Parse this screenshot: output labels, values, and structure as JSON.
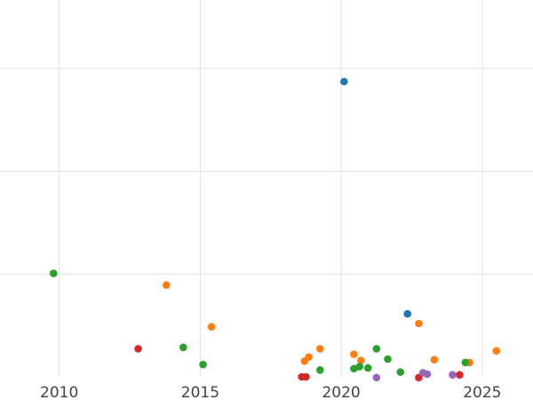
{
  "chart_data": {
    "type": "scatter",
    "title": "",
    "xlabel": "",
    "ylabel": "",
    "xlim": [
      2007.9,
      2026.8
    ],
    "ylim": [
      0,
      55
    ],
    "x_ticks": [
      2010,
      2015,
      2020,
      2025
    ],
    "x_tick_labels": [
      "2010",
      "2015",
      "2020",
      "2025"
    ],
    "y_grid_values": [
      15,
      30,
      45
    ],
    "grid": true,
    "legend": "none",
    "colors": {
      "blue": "#1f77b4",
      "orange": "#ff7f0e",
      "green": "#2ca02c",
      "red": "#d62728",
      "purple": "#9467bd"
    },
    "series": [
      {
        "color": "#1f77b4",
        "points": [
          {
            "x": 2020.1,
            "y": 43.1
          },
          {
            "x": 2022.35,
            "y": 9.2
          }
        ]
      },
      {
        "color": "#ff7f0e",
        "points": [
          {
            "x": 2013.8,
            "y": 13.4
          },
          {
            "x": 2015.4,
            "y": 7.3
          },
          {
            "x": 2018.7,
            "y": 2.3
          },
          {
            "x": 2018.85,
            "y": 2.9
          },
          {
            "x": 2019.25,
            "y": 4.1
          },
          {
            "x": 2020.45,
            "y": 3.3
          },
          {
            "x": 2020.7,
            "y": 2.4
          },
          {
            "x": 2022.75,
            "y": 7.8
          },
          {
            "x": 2023.3,
            "y": 2.5
          },
          {
            "x": 2024.55,
            "y": 2.1
          },
          {
            "x": 2025.5,
            "y": 3.8
          }
        ]
      },
      {
        "color": "#2ca02c",
        "points": [
          {
            "x": 2009.8,
            "y": 15.1
          },
          {
            "x": 2014.4,
            "y": 4.3
          },
          {
            "x": 2015.1,
            "y": 1.8
          },
          {
            "x": 2019.25,
            "y": 1.0
          },
          {
            "x": 2020.45,
            "y": 1.2
          },
          {
            "x": 2020.65,
            "y": 1.5
          },
          {
            "x": 2020.95,
            "y": 1.3
          },
          {
            "x": 2021.25,
            "y": 4.1
          },
          {
            "x": 2021.65,
            "y": 2.6
          },
          {
            "x": 2022.1,
            "y": 0.7
          },
          {
            "x": 2024.4,
            "y": 2.1
          }
        ]
      },
      {
        "color": "#d62728",
        "points": [
          {
            "x": 2012.8,
            "y": 4.1
          },
          {
            "x": 2018.6,
            "y": 0.0
          },
          {
            "x": 2018.75,
            "y": 0.0
          },
          {
            "x": 2022.75,
            "y": -0.1
          },
          {
            "x": 2024.2,
            "y": 0.3
          }
        ]
      },
      {
        "color": "#9467bd",
        "points": [
          {
            "x": 2021.25,
            "y": -0.1
          },
          {
            "x": 2022.9,
            "y": 0.6
          },
          {
            "x": 2023.05,
            "y": 0.4
          },
          {
            "x": 2023.95,
            "y": 0.3
          }
        ]
      }
    ]
  }
}
